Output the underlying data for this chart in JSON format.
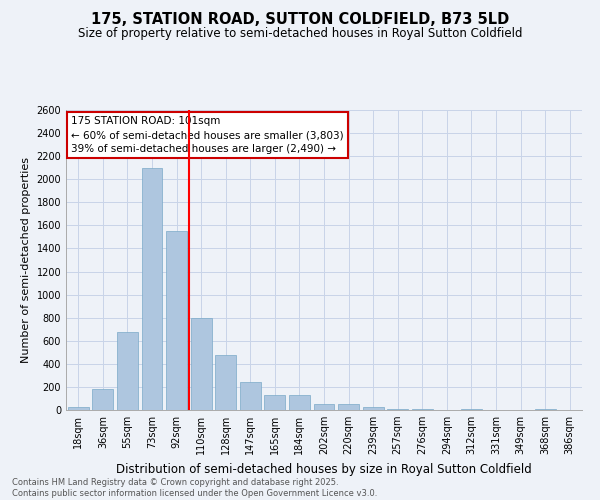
{
  "title": "175, STATION ROAD, SUTTON COLDFIELD, B73 5LD",
  "subtitle": "Size of property relative to semi-detached houses in Royal Sutton Coldfield",
  "xlabel": "Distribution of semi-detached houses by size in Royal Sutton Coldfield",
  "ylabel": "Number of semi-detached properties",
  "categories": [
    "18sqm",
    "36sqm",
    "55sqm",
    "73sqm",
    "92sqm",
    "110sqm",
    "128sqm",
    "147sqm",
    "165sqm",
    "184sqm",
    "202sqm",
    "220sqm",
    "239sqm",
    "257sqm",
    "276sqm",
    "294sqm",
    "312sqm",
    "331sqm",
    "349sqm",
    "368sqm",
    "386sqm"
  ],
  "values": [
    25,
    180,
    680,
    2100,
    1550,
    800,
    480,
    240,
    130,
    130,
    50,
    50,
    30,
    10,
    5,
    0,
    5,
    0,
    0,
    5,
    0
  ],
  "bar_color": "#aec6df",
  "bar_edge_color": "#7aaac8",
  "vline_bin_index": 4.5,
  "annotation_line1": "175 STATION ROAD: 101sqm",
  "annotation_line2": "← 60% of semi-detached houses are smaller (3,803)",
  "annotation_line3": "39% of semi-detached houses are larger (2,490) →",
  "annotation_box_color": "#ffffff",
  "annotation_box_edge": "#cc0000",
  "ylim": [
    0,
    2600
  ],
  "yticks": [
    0,
    200,
    400,
    600,
    800,
    1000,
    1200,
    1400,
    1600,
    1800,
    2000,
    2200,
    2400,
    2600
  ],
  "grid_color": "#c8d4e8",
  "background_color": "#eef2f8",
  "footer": "Contains HM Land Registry data © Crown copyright and database right 2025.\nContains public sector information licensed under the Open Government Licence v3.0.",
  "title_fontsize": 10.5,
  "subtitle_fontsize": 8.5,
  "xlabel_fontsize": 8.5,
  "ylabel_fontsize": 8,
  "tick_fontsize": 7,
  "annotation_fontsize": 7.5,
  "footer_fontsize": 6
}
